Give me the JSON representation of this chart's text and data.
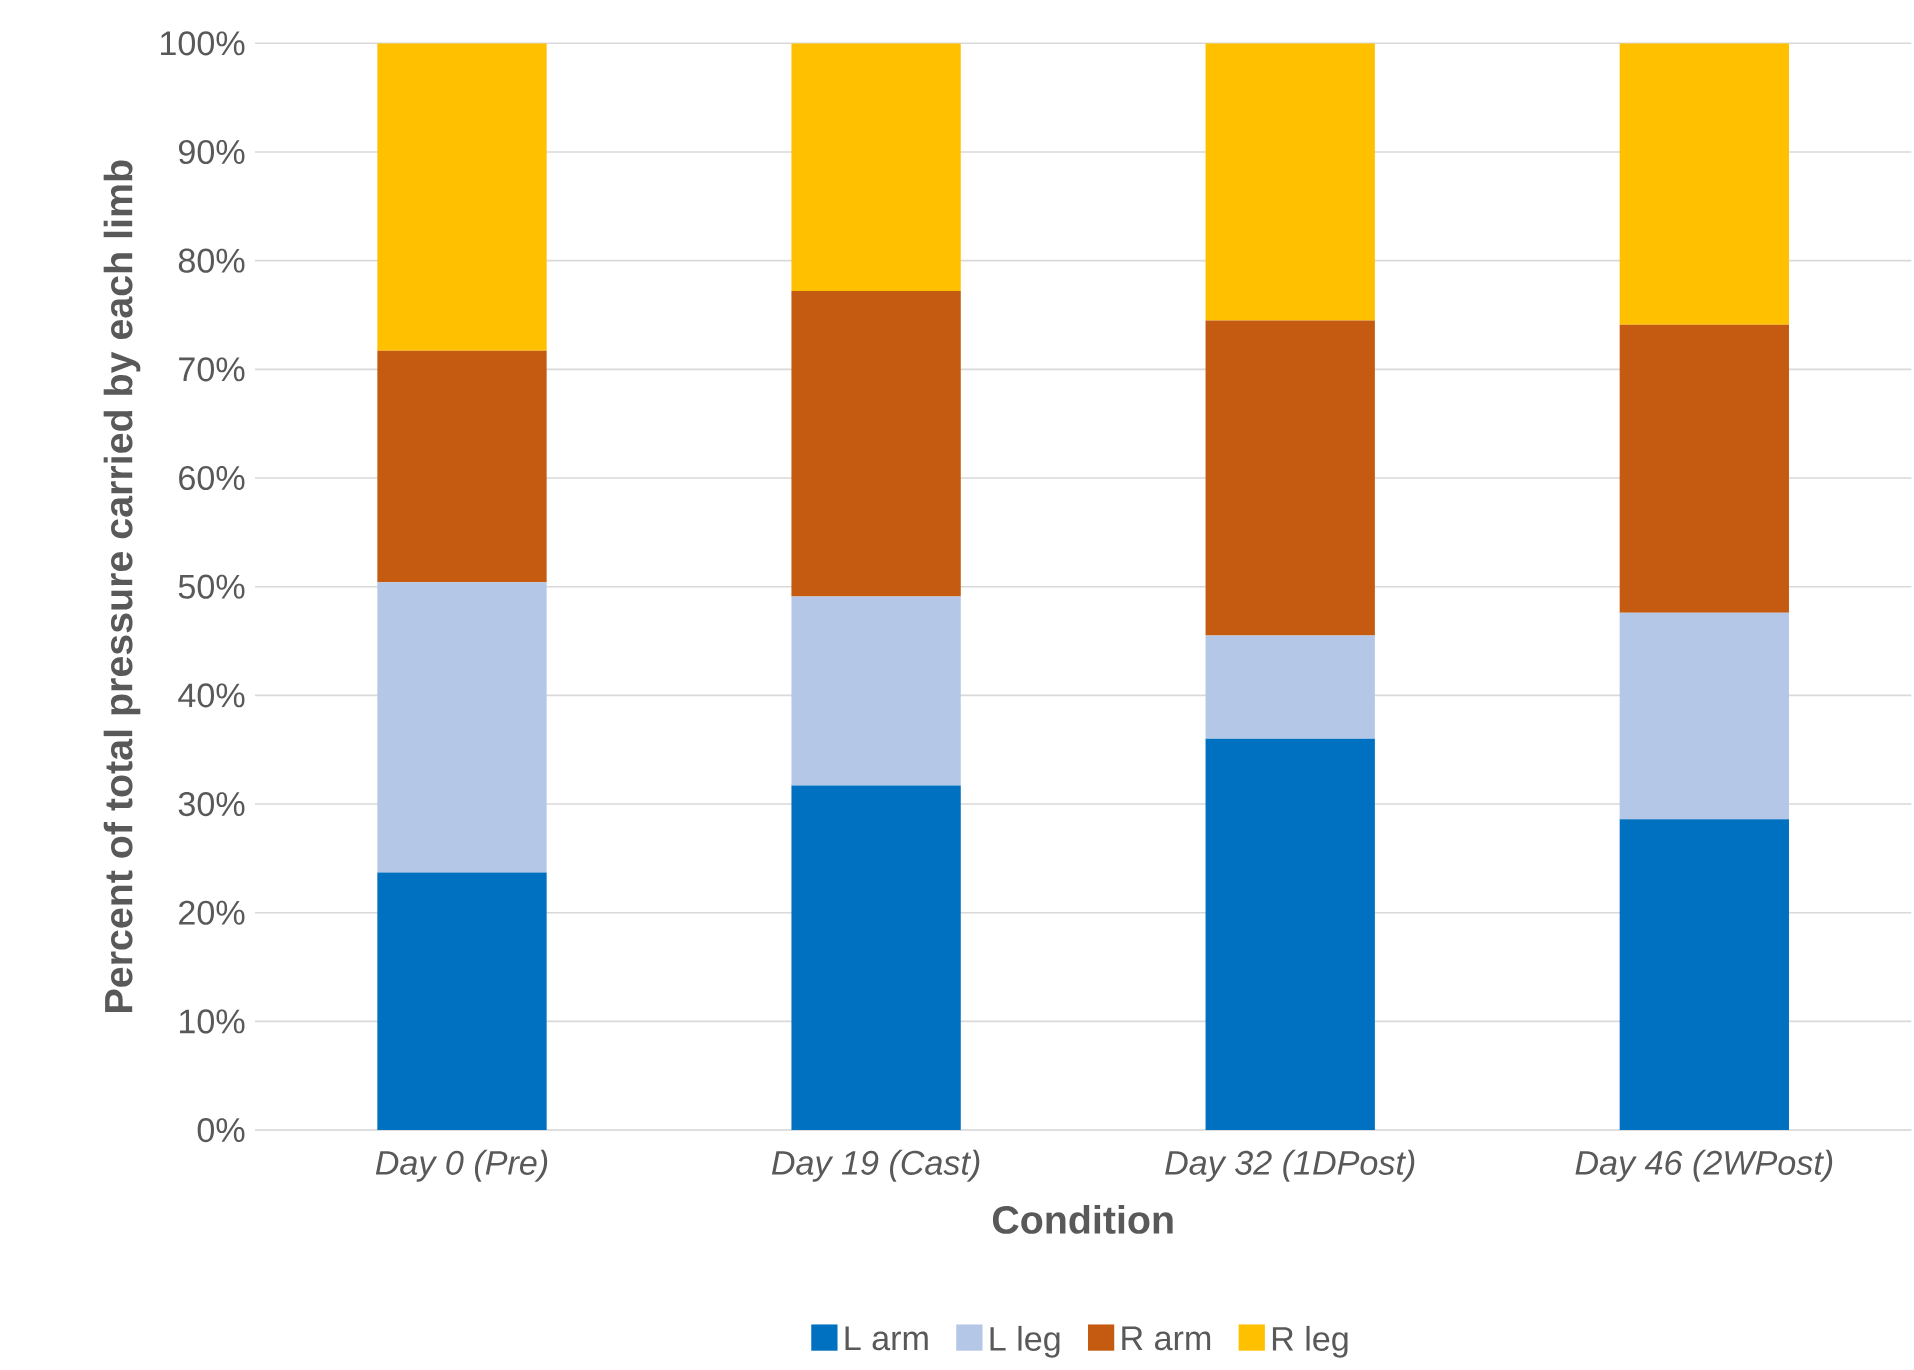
{
  "chart_data": {
    "type": "bar",
    "stacked": true,
    "xlabel": "Condition",
    "ylabel": "Percent of total pressure carried by each limb",
    "categories": [
      "Day 0 (Pre)",
      "Day 19 (Cast)",
      "Day 32 (1DPost)",
      "Day 46 (2WPost)"
    ],
    "series": [
      {
        "name": "L arm",
        "color": "#0070c0",
        "values": [
          23.7,
          31.7,
          36.0,
          28.6
        ]
      },
      {
        "name": "L leg",
        "color": "#b4c7e7",
        "values": [
          26.7,
          17.4,
          9.5,
          19.0
        ]
      },
      {
        "name": "R arm",
        "color": "#c55a11",
        "values": [
          21.3,
          28.1,
          29.0,
          26.5
        ]
      },
      {
        "name": "R leg",
        "color": "#ffc000",
        "values": [
          28.3,
          22.8,
          25.5,
          25.9
        ]
      }
    ],
    "ylim": [
      0,
      100
    ],
    "yticks": [
      {
        "value": 0,
        "label": "0%"
      },
      {
        "value": 10,
        "label": "10%"
      },
      {
        "value": 20,
        "label": "20%"
      },
      {
        "value": 30,
        "label": "30%"
      },
      {
        "value": 40,
        "label": "40%"
      },
      {
        "value": 50,
        "label": "50%"
      },
      {
        "value": 60,
        "label": "60%"
      },
      {
        "value": 70,
        "label": "70%"
      },
      {
        "value": 80,
        "label": "80%"
      },
      {
        "value": 90,
        "label": "90%"
      },
      {
        "value": 100,
        "label": "100%"
      }
    ],
    "grid": "y",
    "legend": "bottom"
  }
}
